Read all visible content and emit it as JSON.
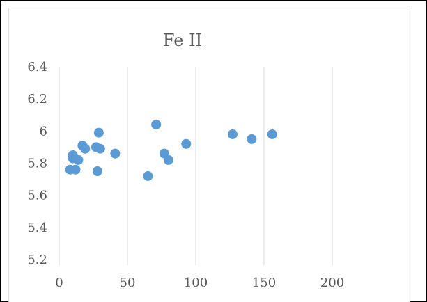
{
  "chart_data": {
    "type": "scatter",
    "title": "Fe II",
    "xlabel": "",
    "ylabel": "",
    "xlim": [
      0,
      200
    ],
    "ylim": [
      5.2,
      6.4
    ],
    "x_ticks": [
      0,
      50,
      100,
      150,
      200
    ],
    "y_ticks": [
      5.2,
      5.4,
      5.6,
      5.8,
      6.0,
      6.2,
      6.4
    ],
    "x_tick_labels": [
      "0",
      "50",
      "100",
      "150",
      "200"
    ],
    "y_tick_labels": [
      "5.2",
      "5.4",
      "5.6",
      "5.8",
      "6",
      "6.2",
      "6.4"
    ],
    "grid": "vertical major gridlines",
    "legend": "none",
    "series": [
      {
        "color": "#5B9BD5",
        "points": [
          {
            "x": 8,
            "y": 5.76
          },
          {
            "x": 10,
            "y": 5.85
          },
          {
            "x": 10,
            "y": 5.83
          },
          {
            "x": 12,
            "y": 5.76
          },
          {
            "x": 14,
            "y": 5.82
          },
          {
            "x": 17,
            "y": 5.91
          },
          {
            "x": 19,
            "y": 5.89
          },
          {
            "x": 27,
            "y": 5.9
          },
          {
            "x": 28,
            "y": 5.75
          },
          {
            "x": 29,
            "y": 5.99
          },
          {
            "x": 30,
            "y": 5.89
          },
          {
            "x": 41,
            "y": 5.86
          },
          {
            "x": 65,
            "y": 5.72
          },
          {
            "x": 71,
            "y": 6.04
          },
          {
            "x": 77,
            "y": 5.86
          },
          {
            "x": 80,
            "y": 5.82
          },
          {
            "x": 93,
            "y": 5.92
          },
          {
            "x": 127,
            "y": 5.98
          },
          {
            "x": 141,
            "y": 5.95
          },
          {
            "x": 156,
            "y": 5.98
          }
        ]
      }
    ]
  },
  "colors": {
    "frame_border": "#000000",
    "inner_border": "#D9D9D9",
    "grid": "#D9D9D9",
    "text": "#595959",
    "marker": "#5B9BD5"
  }
}
